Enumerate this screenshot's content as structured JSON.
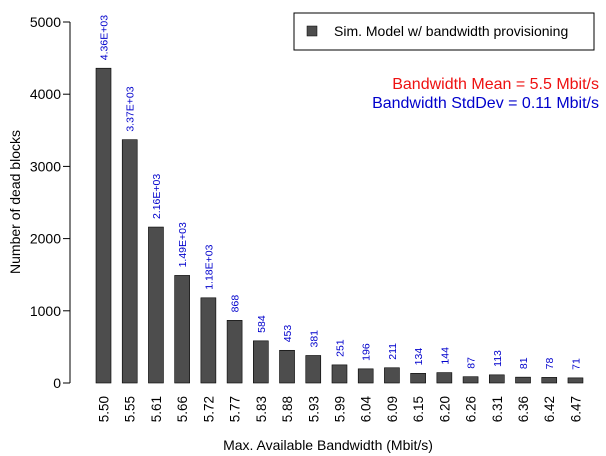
{
  "chart_data": {
    "type": "bar",
    "title": "",
    "xlabel": "Max. Available Bandwidth (Mbit/s)",
    "ylabel": "Number of dead blocks",
    "ylim": [
      0,
      5000
    ],
    "yticks": [
      "0",
      "1000",
      "2000",
      "3000",
      "4000",
      "5000"
    ],
    "categories": [
      "5.50",
      "5.55",
      "5.61",
      "5.66",
      "5.72",
      "5.77",
      "5.83",
      "5.88",
      "5.93",
      "5.99",
      "6.04",
      "6.09",
      "6.15",
      "6.20",
      "6.26",
      "6.31",
      "6.36",
      "6.42",
      "6.47"
    ],
    "series": [
      {
        "name": "Sim. Model w/ bandwidth provisioning",
        "color": "#4d4d4d",
        "values": [
          4360,
          3370,
          2160,
          1490,
          1180,
          868,
          584,
          453,
          381,
          251,
          196,
          211,
          134,
          144,
          87,
          113,
          81,
          78,
          71
        ],
        "data_labels": [
          "4.36E+03",
          "3.37E+03",
          "2.16E+03",
          "1.49E+03",
          "1.18E+03",
          "868",
          "584",
          "453",
          "381",
          "251",
          "196",
          "211",
          "134",
          "144",
          "87",
          "113",
          "81",
          "78",
          "71"
        ],
        "label_color": "#0000cc"
      }
    ],
    "grid": false,
    "legend": {
      "position": "top-right"
    },
    "annotations": [
      {
        "text": "Bandwidth Mean = 5.5 Mbit/s",
        "color": "#ee1111"
      },
      {
        "text": "Bandwidth StdDev = 0.11 Mbit/s",
        "color": "#0000cc"
      }
    ]
  }
}
